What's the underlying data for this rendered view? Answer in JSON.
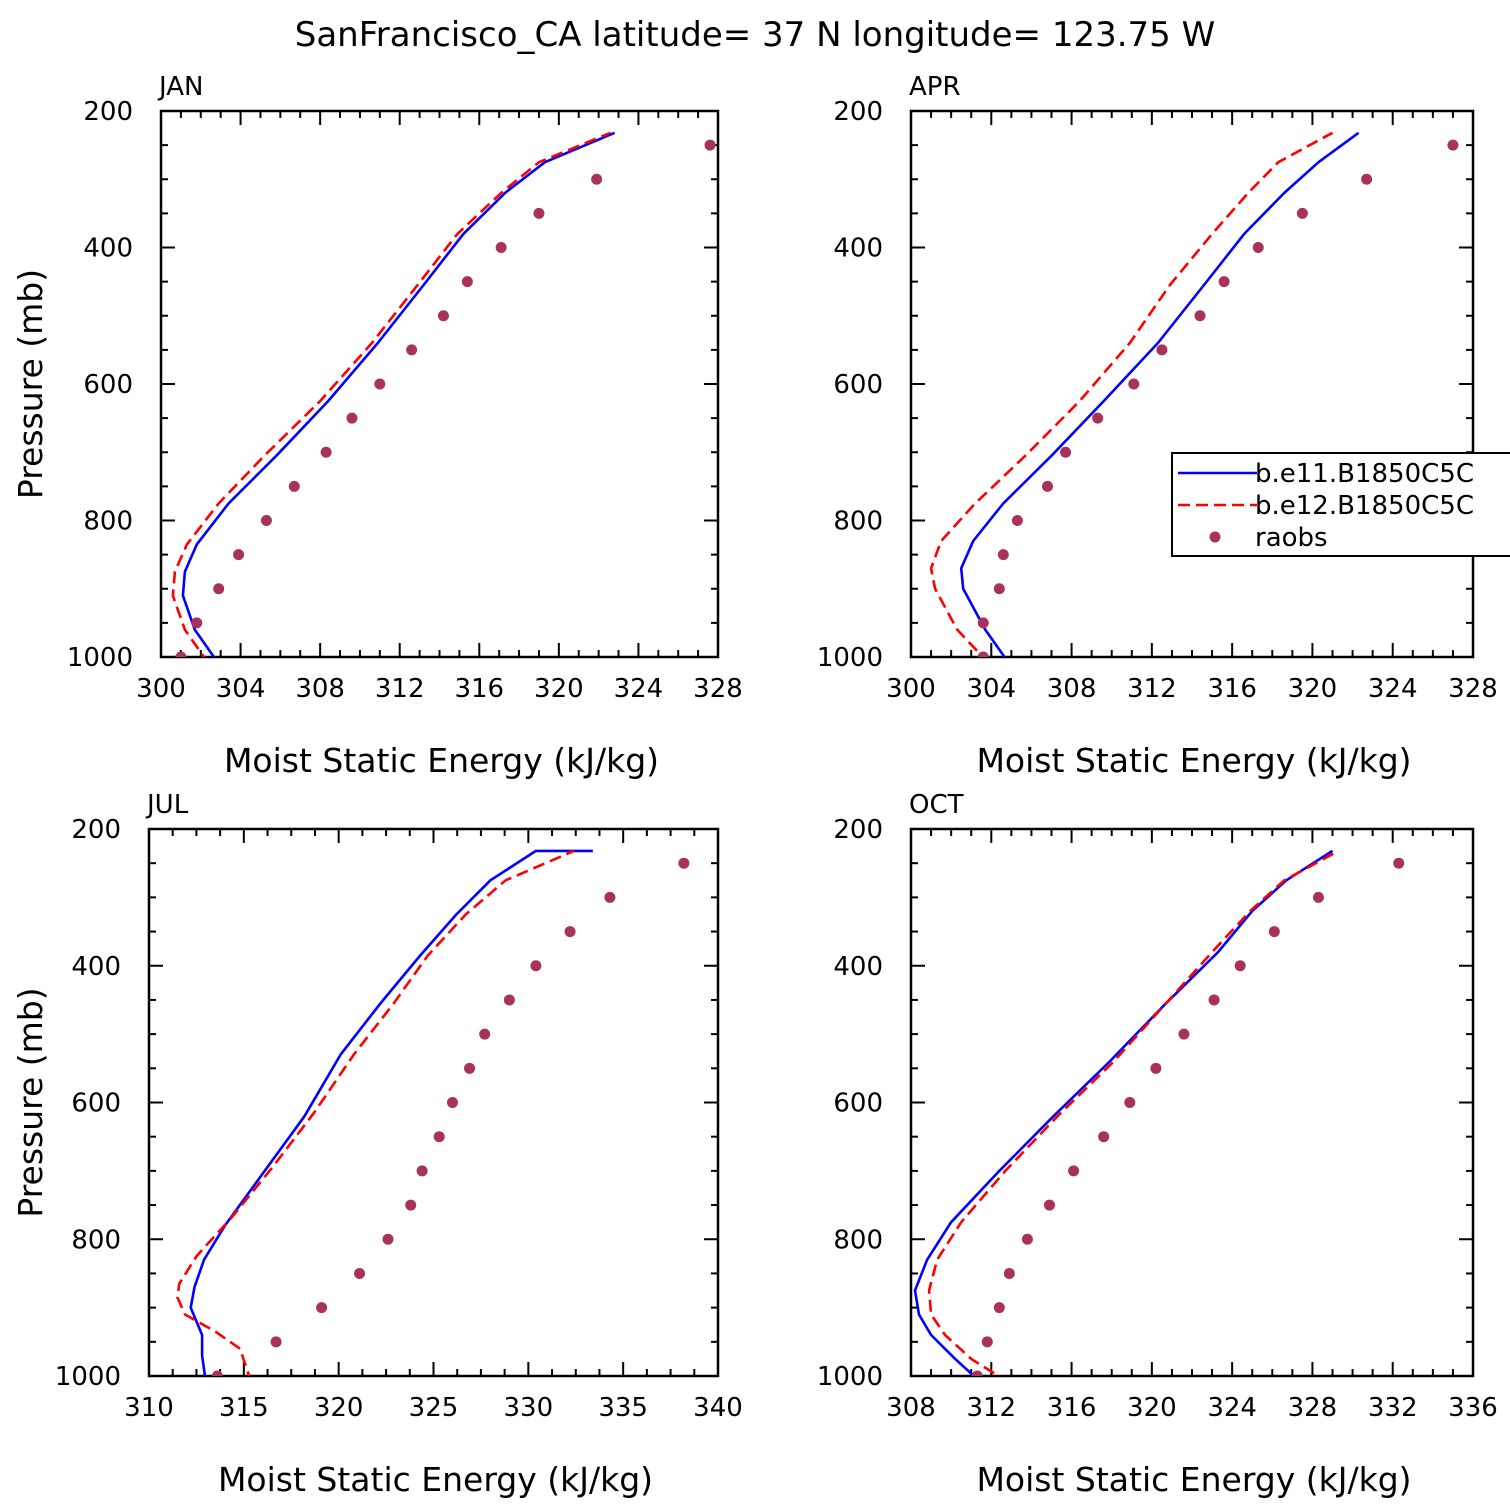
{
  "title": "SanFrancisco_CA  latitude= 37 N longitude= 123.75 W",
  "colors": {
    "model1": "#0000ff",
    "model2": "#ff0000",
    "raobs": "#a8325a"
  },
  "legend": {
    "entries": [
      {
        "key": "model1",
        "label": "b.e11.B1850C5C",
        "style": "solid"
      },
      {
        "key": "model2",
        "label": "b.e12.B1850C5C",
        "style": "dashed"
      },
      {
        "key": "raobs",
        "label": "raobs",
        "style": "marker"
      }
    ],
    "panel": "APR",
    "placement": "right, clipped at figure edge"
  },
  "chart_data": [
    {
      "type": "line",
      "panel": "JAN",
      "xlabel": "Moist Static Energy (kJ/kg)",
      "ylabel": "Pressure (mb)",
      "xlim": [
        300,
        328
      ],
      "xticks": [
        300,
        304,
        308,
        312,
        316,
        320,
        324,
        328
      ],
      "ylim": [
        1000,
        200
      ],
      "yticks": [
        200,
        400,
        600,
        800,
        1000
      ],
      "series": [
        {
          "name": "b.e11.B1850C5C",
          "key": "model1",
          "x": [
            302.9,
            301.7,
            301.1,
            301.2,
            301.8,
            303.4,
            305.8,
            308.4,
            310.9,
            313.2,
            315.2,
            317.3,
            319.3,
            322.8
          ],
          "y": [
            1010,
            960,
            910,
            875,
            835,
            775,
            705,
            625,
            540,
            455,
            380,
            320,
            275,
            232
          ]
        },
        {
          "name": "b.e12.B1850C5C",
          "key": "model2",
          "x": [
            302.4,
            301.2,
            300.6,
            300.7,
            301.3,
            302.9,
            305.2,
            308.0,
            310.6,
            312.9,
            314.9,
            317.1,
            319.0,
            322.6
          ],
          "y": [
            1010,
            960,
            910,
            875,
            835,
            775,
            705,
            625,
            540,
            455,
            380,
            320,
            275,
            232
          ]
        },
        {
          "name": "raobs",
          "key": "raobs",
          "x": [
            301.0,
            301.8,
            302.9,
            303.9,
            305.3,
            306.7,
            308.3,
            309.6,
            311.0,
            312.6,
            314.2,
            315.4,
            317.1,
            319.0,
            321.9,
            327.6
          ],
          "y": [
            1000,
            950,
            900,
            850,
            800,
            750,
            700,
            650,
            600,
            550,
            500,
            450,
            400,
            350,
            300,
            250
          ]
        }
      ]
    },
    {
      "type": "line",
      "panel": "APR",
      "xlabel": "Moist Static Energy (kJ/kg)",
      "ylabel": "",
      "xlim": [
        300,
        328
      ],
      "xticks": [
        300,
        304,
        308,
        312,
        316,
        320,
        324,
        328
      ],
      "ylim": [
        1000,
        200
      ],
      "yticks": [
        200,
        400,
        600,
        800,
        1000
      ],
      "series": [
        {
          "name": "b.e11.B1850C5C",
          "key": "model1",
          "x": [
            304.9,
            303.7,
            302.6,
            302.5,
            303.1,
            304.6,
            307.0,
            309.6,
            312.3,
            314.6,
            316.6,
            318.6,
            320.3,
            322.3
          ],
          "y": [
            1010,
            960,
            900,
            870,
            830,
            775,
            705,
            625,
            540,
            455,
            380,
            320,
            275,
            232
          ]
        },
        {
          "name": "b.e12.B1850C5C",
          "key": "model2",
          "x": [
            303.9,
            302.3,
            301.2,
            301.0,
            301.5,
            303.2,
            305.7,
            308.4,
            310.9,
            312.9,
            315.0,
            316.8,
            318.3,
            321.0
          ],
          "y": [
            1010,
            960,
            900,
            870,
            830,
            775,
            705,
            625,
            540,
            455,
            380,
            320,
            275,
            232
          ]
        },
        {
          "name": "raobs",
          "key": "raobs",
          "x": [
            303.6,
            303.6,
            304.4,
            304.6,
            305.3,
            306.8,
            307.7,
            309.3,
            311.1,
            312.5,
            314.4,
            315.6,
            317.3,
            319.5,
            322.7,
            327.0
          ],
          "y": [
            1000,
            950,
            900,
            850,
            800,
            750,
            700,
            650,
            600,
            550,
            500,
            450,
            400,
            350,
            300,
            250
          ]
        }
      ]
    },
    {
      "type": "line",
      "panel": "JUL",
      "xlabel": "Moist Static Energy (kJ/kg)",
      "ylabel": "Pressure (mb)",
      "xlim": [
        310,
        340
      ],
      "xticks": [
        310,
        315,
        320,
        325,
        330,
        335,
        340
      ],
      "ylim": [
        1000,
        200
      ],
      "yticks": [
        200,
        400,
        600,
        800,
        1000
      ],
      "series": [
        {
          "name": "b.e11.B1850C5C",
          "key": "model1",
          "x": [
            313.0,
            312.8,
            312.8,
            312.5,
            312.2,
            312.4,
            312.9,
            314.0,
            316.1,
            318.2,
            320.1,
            322.2,
            324.3,
            326.2,
            328.0,
            330.4,
            333.4
          ],
          "y": [
            1010,
            970,
            940,
            920,
            900,
            870,
            830,
            780,
            700,
            620,
            530,
            455,
            385,
            325,
            275,
            232,
            232
          ]
        },
        {
          "name": "b.e12.B1850C5C",
          "key": "model2",
          "x": [
            315.4,
            314.8,
            313.5,
            311.9,
            311.5,
            311.6,
            312.5,
            314.3,
            316.5,
            318.7,
            320.8,
            322.9,
            324.7,
            326.7,
            328.8,
            332.4
          ],
          "y": [
            1010,
            960,
            935,
            910,
            885,
            865,
            825,
            770,
            695,
            615,
            530,
            455,
            385,
            325,
            275,
            232
          ]
        },
        {
          "name": "raobs",
          "key": "raobs",
          "x": [
            313.6,
            316.7,
            319.1,
            321.1,
            322.6,
            323.8,
            324.4,
            325.3,
            326.0,
            326.9,
            327.7,
            329.0,
            330.4,
            332.2,
            334.3,
            338.2
          ],
          "y": [
            1000,
            950,
            900,
            850,
            800,
            750,
            700,
            650,
            600,
            550,
            500,
            450,
            400,
            350,
            300,
            250
          ]
        }
      ]
    },
    {
      "type": "line",
      "panel": "OCT",
      "xlabel": "Moist Static Energy (kJ/kg)",
      "ylabel": "",
      "xlim": [
        308,
        336
      ],
      "xticks": [
        308,
        312,
        316,
        320,
        324,
        328,
        332,
        336
      ],
      "ylim": [
        1000,
        200
      ],
      "yticks": [
        200,
        400,
        600,
        800,
        1000
      ],
      "series": [
        {
          "name": "b.e11.B1850C5C",
          "key": "model1",
          "x": [
            311.5,
            310.2,
            309.0,
            308.4,
            308.2,
            308.8,
            310.0,
            312.4,
            315.1,
            317.9,
            320.7,
            323.3,
            325.0,
            326.7,
            329.0
          ],
          "y": [
            1010,
            975,
            940,
            910,
            875,
            830,
            775,
            700,
            620,
            540,
            455,
            380,
            320,
            275,
            232
          ]
        },
        {
          "name": "b.e12.B1850C5C",
          "key": "model2",
          "x": [
            312.9,
            311.0,
            309.7,
            309.0,
            308.9,
            309.3,
            310.5,
            312.7,
            315.3,
            318.1,
            320.7,
            323.0,
            324.9,
            326.6,
            329.3
          ],
          "y": [
            1010,
            975,
            940,
            910,
            875,
            830,
            775,
            700,
            620,
            540,
            455,
            380,
            320,
            275,
            232
          ]
        },
        {
          "name": "raobs",
          "key": "raobs",
          "x": [
            311.3,
            311.8,
            312.4,
            312.9,
            313.8,
            314.9,
            316.1,
            317.6,
            318.9,
            320.2,
            321.6,
            323.1,
            324.4,
            326.1,
            328.3,
            332.3
          ],
          "y": [
            1000,
            950,
            900,
            850,
            800,
            750,
            700,
            650,
            600,
            550,
            500,
            450,
            400,
            350,
            300,
            250
          ]
        }
      ]
    }
  ]
}
